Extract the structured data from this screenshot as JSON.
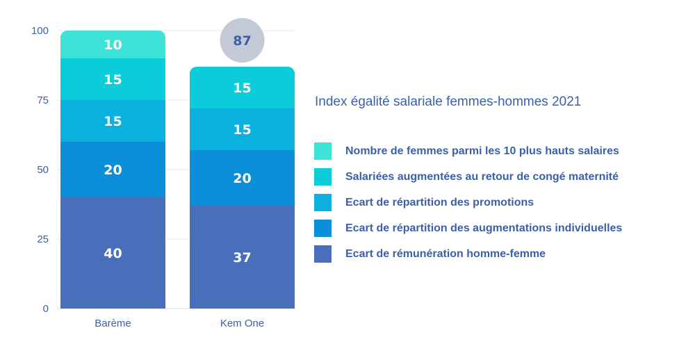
{
  "chart_data": {
    "type": "bar",
    "stacked": true,
    "title": "Index égalité salariale femmes-hommes 2021",
    "categories": [
      "Barème",
      "Kem One"
    ],
    "ylim": [
      0,
      100
    ],
    "yticks": [
      "0",
      "25",
      "50",
      "75",
      "100"
    ],
    "grid": true,
    "legend_placement": "right",
    "totals": [
      "",
      "87"
    ],
    "series": [
      {
        "name": "Ecart de rémunération homme-femme",
        "values": [
          40,
          37
        ],
        "color": "#4a6fba"
      },
      {
        "name": "Ecart de répartition des augmentations individuelles",
        "values": [
          20,
          20
        ],
        "color": "#0a8fd8"
      },
      {
        "name": "Ecart de répartition des promotions",
        "values": [
          15,
          15
        ],
        "color": "#0ab0de"
      },
      {
        "name": "Salariées augmentées au retour de congé maternité",
        "values": [
          15,
          15
        ],
        "color": "#0bcdd9"
      },
      {
        "name": "Nombre de femmes parmi les 10 plus hauts salaires",
        "values": [
          10,
          0
        ],
        "color": "#3de3d6"
      }
    ],
    "total_badge_color": "#c3cad6"
  }
}
